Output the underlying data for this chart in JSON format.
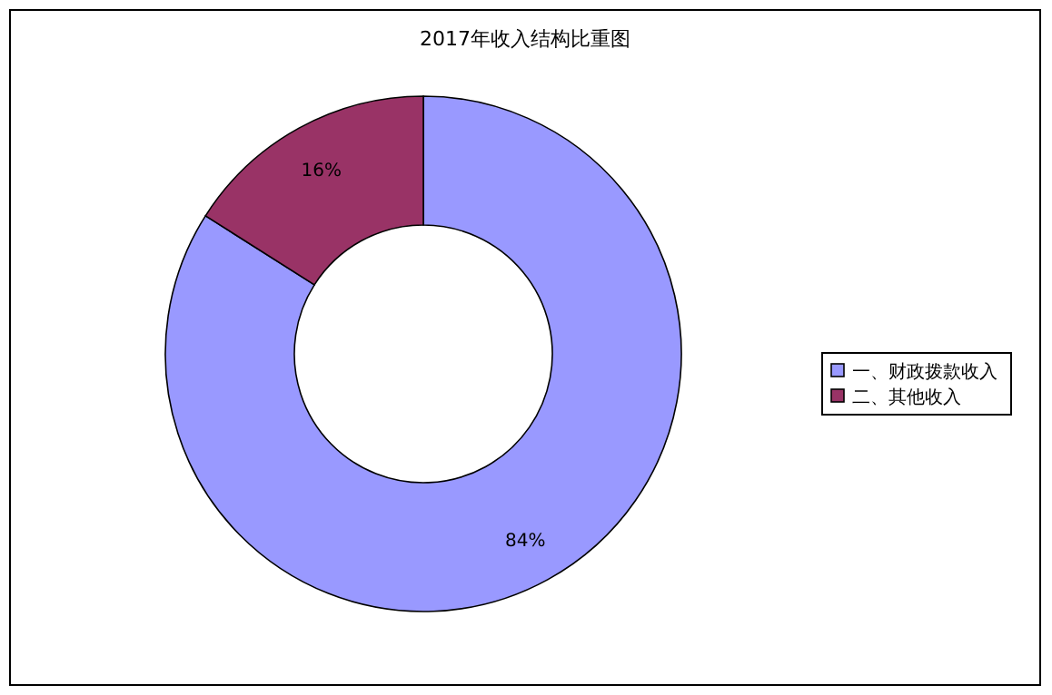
{
  "chart_data": {
    "type": "donut",
    "title": "2017年收入结构比重图",
    "categories": [
      "一、财政拨款收入",
      "二、其他收入"
    ],
    "values": [
      84,
      16
    ],
    "colors": [
      "#9999ff",
      "#993366"
    ],
    "value_labels": [
      "84%",
      "16%"
    ],
    "legend": "right"
  }
}
